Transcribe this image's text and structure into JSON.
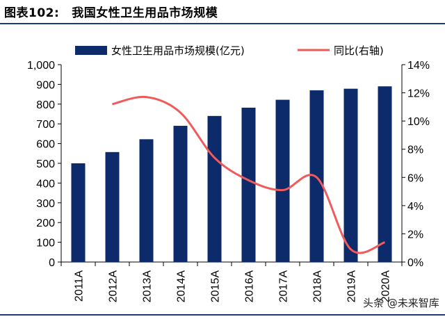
{
  "figure": {
    "label": "图表102:",
    "title": "我国女性卫生用品市场规模"
  },
  "watermark": "头条 @未来智库",
  "chart_data": {
    "type": "bar",
    "categories": [
      "2011A",
      "2012A",
      "2013A",
      "2014A",
      "2015A",
      "2016A",
      "2017A",
      "2018A",
      "2019A",
      "2020A"
    ],
    "series": [
      {
        "name": "女性卫生用品市场规模(亿元)",
        "kind": "bar",
        "axis": "left",
        "color": "#0d2a6b",
        "values": [
          500,
          557,
          622,
          690,
          740,
          782,
          822,
          870,
          878,
          890
        ]
      },
      {
        "name": "同比(右轴)",
        "kind": "line",
        "axis": "right",
        "color": "#f05a5a",
        "values": [
          null,
          11.2,
          11.7,
          10.6,
          7.4,
          5.8,
          5.1,
          6.0,
          0.9,
          1.4
        ]
      }
    ],
    "y_left": {
      "ylim": [
        0,
        1000
      ],
      "ticks": [
        "0",
        "100",
        "200",
        "300",
        "400",
        "500",
        "600",
        "700",
        "800",
        "900",
        "1,000"
      ]
    },
    "y_right": {
      "ylim": [
        0,
        14
      ],
      "ticks": [
        "0%",
        "2%",
        "4%",
        "6%",
        "8%",
        "10%",
        "12%",
        "14%"
      ]
    },
    "legend": "top",
    "grid": false
  }
}
